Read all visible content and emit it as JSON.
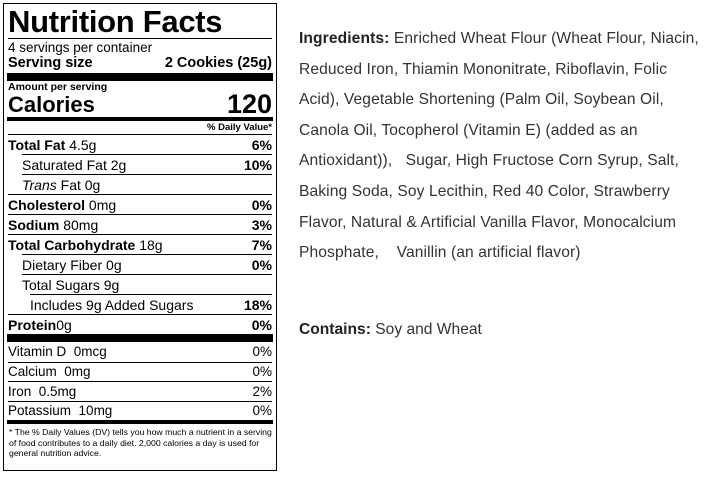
{
  "label": {
    "title": "Nutrition Facts",
    "servings_per_container": "4 servings per container",
    "serving_size_label": "Serving size",
    "serving_size_value": "2 Cookies (25g)",
    "amount_per_serving": "Amount per serving",
    "calories_label": "Calories",
    "calories_value": "120",
    "dv_header": "% Daily Value*",
    "nutrients": [
      {
        "name": "Total Fat",
        "amount": "4.5g",
        "dv": "6%"
      },
      {
        "name": "Saturated Fat",
        "amount": "2g",
        "dv": "10%"
      },
      {
        "name": "Trans",
        "name_suffix": " Fat",
        "amount": "0g",
        "dv": ""
      },
      {
        "name": "Cholesterol",
        "amount": "0mg",
        "dv": "0%"
      },
      {
        "name": "Sodium",
        "amount": "80mg",
        "dv": "3%"
      },
      {
        "name": "Total Carbohydrate",
        "amount": "18g",
        "dv": "7%"
      },
      {
        "name": "Dietary Fiber",
        "amount": "0g",
        "dv": "0%"
      },
      {
        "name": "Total Sugars",
        "amount": "9g",
        "dv": ""
      },
      {
        "name": "Includes 9g Added Sugars",
        "amount": "",
        "dv": "18%"
      },
      {
        "name": "Protein",
        "amount": "0g",
        "dv": "0%"
      }
    ],
    "vitamins": [
      {
        "name": "Vitamin D",
        "amount": "0mcg",
        "dv": "0%"
      },
      {
        "name": "Calcium",
        "amount": "0mg",
        "dv": "0%"
      },
      {
        "name": "Iron",
        "amount": "0.5mg",
        "dv": "2%"
      },
      {
        "name": "Potassium",
        "amount": "10mg",
        "dv": "0%"
      }
    ],
    "footnote": "* The % Daily Values (DV) tells you how much a nutrient in a serving of food contributes to a daily diet. 2,000 calories a day is used for general nutrition advice."
  },
  "ingredients": {
    "heading": "Ingredients:",
    "text": "Enriched Wheat Flour (Wheat Flour, Niacin, Reduced Iron, Thiamin Mononitrate, Riboflavin, Folic Acid), Vegetable Shortening (Palm Oil, Soybean Oil, Canola Oil, Tocopherol (Vitamin E) (added as an Antioxidant)),   Sugar, High Fructose Corn Syrup, Salt, Baking Soda, Soy Lecithin, Red 40 Color, Strawberry Flavor, Natural & Artificial Vanilla Flavor, Monocalcium Phosphate,    Vanillin (an artificial flavor)"
  },
  "contains": {
    "heading": "Contains:",
    "text": "Soy and Wheat"
  }
}
